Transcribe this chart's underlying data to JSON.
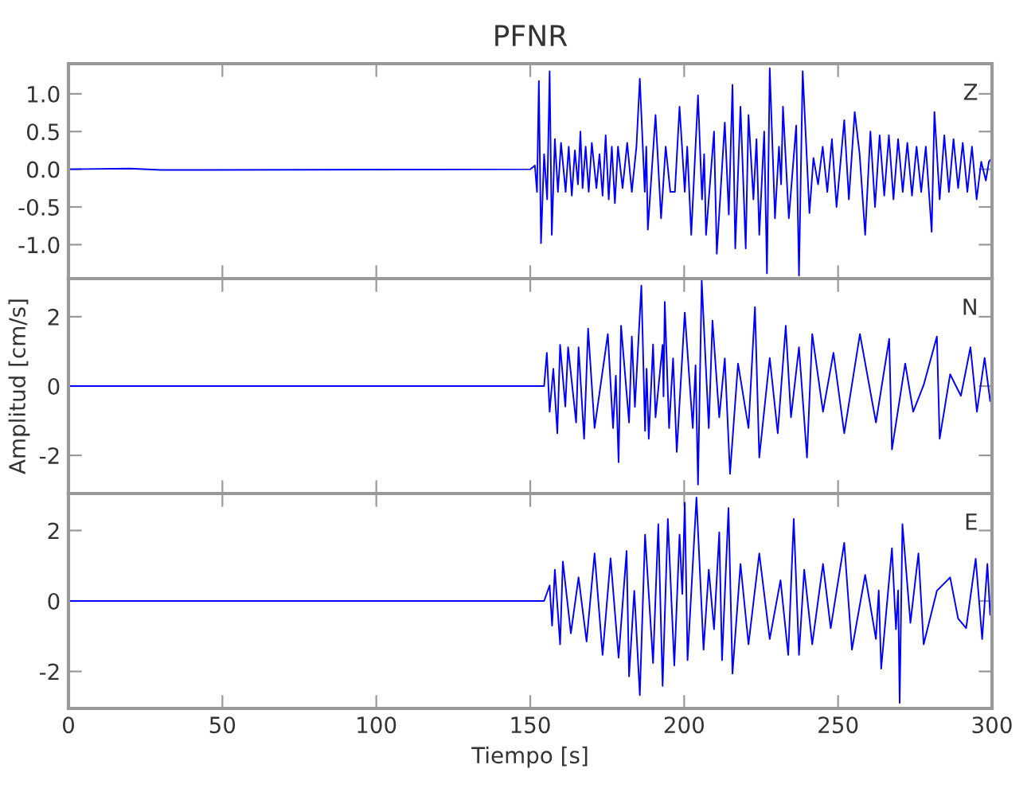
{
  "chart_data": [
    {
      "type": "line",
      "title": "PFNR",
      "annotations": [
        "Z"
      ],
      "xlim": [
        0,
        300
      ],
      "xticks": [
        0,
        50,
        100,
        150,
        200,
        250,
        300
      ],
      "ylim": [
        -1.45,
        1.4
      ],
      "yticks": [
        {
          "value": -1.0,
          "label": "-1.0"
        },
        {
          "value": -0.5,
          "label": "-0.5"
        },
        {
          "value": 0,
          "label": "0.0"
        },
        {
          "value": 0.5,
          "label": "0.5"
        },
        {
          "value": 1.0,
          "label": "1.0"
        }
      ],
      "tick_labels": "y",
      "grid": false,
      "legend": false,
      "series": [
        {
          "color": "#0000ff",
          "x": [
            0,
            20,
            30,
            150,
            151.5,
            152.2,
            152.8,
            153.5,
            154.5,
            155.5,
            156.3,
            157,
            158,
            159,
            160,
            161.5,
            162.5,
            163.5,
            164.5,
            165.5,
            166.3,
            167,
            168,
            169,
            170,
            171.5,
            172.5,
            173.5,
            174.5,
            175.5,
            176.5,
            177.5,
            178.5,
            180,
            181.5,
            183,
            184.5,
            185.6,
            187.2,
            187.7,
            188.2,
            190.7,
            192.5,
            194,
            195.5,
            197,
            198.5,
            200.2,
            201,
            202.3,
            204.5,
            205.8,
            206.5,
            207.1,
            209.7,
            210.6,
            213.2,
            214.5,
            215.7,
            216.6,
            218.3,
            220,
            220.9,
            222.5,
            223.5,
            224.4,
            226,
            226.9,
            227.8,
            229.5,
            230.8,
            231.5,
            232.1,
            234,
            236.4,
            237.3,
            238.5,
            240.7,
            242,
            243.5,
            245,
            246.5,
            248,
            249.5,
            252,
            253.5,
            255.4,
            257,
            258.8,
            260.5,
            262,
            263.5,
            265,
            266.5,
            268,
            269.5,
            271,
            272.5,
            274,
            275.5,
            277,
            278.5,
            280.4,
            281.3,
            283,
            284.5,
            286,
            287.5,
            289,
            290.5,
            292,
            293.5,
            295,
            296.5,
            298,
            299,
            300
          ],
          "values": [
            0,
            0.01,
            -0.01,
            0,
            0.05,
            -0.3,
            1.17,
            -0.98,
            0.2,
            -0.4,
            1.3,
            -0.87,
            0.4,
            -0.3,
            0.35,
            -0.3,
            0.3,
            -0.35,
            0.25,
            -0.2,
            0.5,
            -0.25,
            0.3,
            -0.3,
            0.35,
            -0.25,
            0.2,
            -0.35,
            0.45,
            -0.4,
            0.3,
            -0.45,
            0.3,
            -0.25,
            0.35,
            -0.3,
            0.3,
            1.2,
            -0.3,
            0.3,
            -0.8,
            0.72,
            -0.65,
            0.3,
            -0.3,
            -0.3,
            0.83,
            -0.3,
            0.3,
            -0.87,
            0.98,
            -0.4,
            0.2,
            -0.87,
            0.5,
            -1.12,
            0.62,
            -0.6,
            1.12,
            -1.05,
            0.83,
            -1.05,
            0.72,
            -0.4,
            0.4,
            -0.87,
            0.5,
            -1.38,
            1.34,
            -0.65,
            0.3,
            -0.2,
            0.83,
            -0.65,
            0.58,
            -1.41,
            1.3,
            -0.58,
            0.15,
            -0.2,
            0.3,
            -0.3,
            0.4,
            -0.5,
            0.65,
            -0.4,
            0.76,
            0.2,
            -0.87,
            0.5,
            -0.5,
            0.45,
            -0.35,
            0.45,
            -0.4,
            0.4,
            -0.3,
            0.35,
            -0.35,
            0.3,
            -0.3,
            0.3,
            -0.83,
            0.76,
            -0.4,
            0.45,
            -0.3,
            0.4,
            -0.25,
            0.35,
            -0.3,
            0.3,
            -0.4,
            0.1,
            -0.15,
            0.1,
            0.15
          ]
        }
      ]
    },
    {
      "type": "line",
      "ylabel": "Amplitud [cm/s]",
      "annotations": [
        "N"
      ],
      "xlim": [
        0,
        300
      ],
      "xticks": [
        0,
        50,
        100,
        150,
        200,
        250,
        300
      ],
      "ylim": [
        -3.1,
        3.1
      ],
      "yticks": [
        -2,
        0,
        2
      ],
      "tick_labels": "y",
      "grid": false,
      "legend": false,
      "series": [
        {
          "color": "#0000ff",
          "x": [
            0,
            150,
            154.5,
            155.4,
            156.3,
            157.5,
            158.8,
            159.7,
            161.4,
            162.3,
            164.9,
            165.7,
            167.5,
            168.8,
            170.9,
            175.2,
            176.9,
            177.8,
            178.7,
            179.5,
            182.1,
            183,
            184,
            186.1,
            187.3,
            187.8,
            188.5,
            189.9,
            190.7,
            193,
            193.3,
            193.7,
            195.1,
            196.4,
            197.6,
            200.2,
            202.8,
            203.7,
            204.5,
            205.7,
            208,
            209.2,
            211.4,
            213.2,
            214.9,
            217.5,
            220.9,
            223,
            224.4,
            227.8,
            230.4,
            233,
            234.7,
            237.3,
            239.9,
            241.6,
            245.1,
            248.5,
            252,
            257.1,
            262.3,
            266.6,
            267.5,
            271.8,
            274.4,
            277.8,
            282.1,
            283,
            286.4,
            289.9,
            293,
            295.1,
            297.6,
            299.4
          ],
          "values": [
            0,
            0,
            0,
            0.96,
            -0.74,
            0.5,
            -1.36,
            1.19,
            -0.59,
            1.12,
            -1.05,
            1.12,
            -1.52,
            1.66,
            -1.21,
            1.5,
            -1.21,
            0.3,
            -2.2,
            1.74,
            -1.05,
            1.43,
            -0.6,
            2.9,
            -1.29,
            0.5,
            -1.52,
            1.2,
            -0.9,
            1.19,
            -0.3,
            2.43,
            -1.21,
            0.8,
            -1.9,
            2.12,
            -1.21,
            0.6,
            -2.84,
            3.05,
            -1.21,
            1.89,
            -0.9,
            0.8,
            -2.53,
            0.65,
            -1.21,
            2.28,
            -2.06,
            0.81,
            -1.36,
            1.74,
            -0.9,
            1.12,
            -2.06,
            1.5,
            -0.74,
            0.96,
            -1.36,
            1.5,
            -1.05,
            1.36,
            -1.83,
            0.65,
            -0.74,
            0.03,
            1.43,
            -1.52,
            0.34,
            -0.28,
            1.12,
            -0.74,
            0.81,
            -0.43
          ]
        }
      ]
    },
    {
      "type": "line",
      "xlabel": "Tiempo [s]",
      "annotations": [
        "E"
      ],
      "xlim": [
        0,
        300
      ],
      "xticks": [
        0,
        50,
        100,
        150,
        200,
        250,
        300
      ],
      "ylim": [
        -3.05,
        3.05
      ],
      "yticks": [
        -2,
        0,
        2
      ],
      "grid": false,
      "legend": false,
      "series": [
        {
          "color": "#0000ff",
          "x": [
            0,
            150,
            154.5,
            156.3,
            157.1,
            158,
            159.7,
            160.6,
            163.2,
            165.7,
            168.3,
            170.9,
            173.5,
            176.1,
            178.7,
            181.3,
            182.1,
            183.8,
            185.6,
            187.3,
            189.9,
            191.6,
            193,
            194.7,
            196.8,
            198.5,
            199.4,
            200.2,
            201.1,
            204,
            206.3,
            208,
            209.7,
            211.4,
            212.3,
            214.4,
            215.7,
            218.3,
            220.9,
            224.4,
            227.8,
            231.3,
            233.8,
            235.6,
            237.3,
            239,
            241.6,
            245.1,
            247.6,
            252,
            254.5,
            258.8,
            262.3,
            263.2,
            264,
            267.5,
            268.8,
            269.5,
            270,
            270.9,
            273.5,
            276.1,
            277.8,
            282.1,
            286.4,
            289,
            291.6,
            294.7,
            296.8,
            298.5,
            299.4
          ],
          "values": [
            0,
            0,
            0,
            0.44,
            -0.7,
            0.89,
            -1.23,
            1.12,
            -0.92,
            0.67,
            -1.15,
            1.35,
            -1.53,
            1.21,
            -1.61,
            1.42,
            -2.14,
            0.29,
            -2.67,
            1.88,
            -1.76,
            2.18,
            -2.41,
            2.33,
            -1.83,
            1.88,
            0.2,
            2.79,
            -1.68,
            2.94,
            -1.38,
            0.89,
            -0.8,
            1.95,
            -1.68,
            2.64,
            -2.06,
            1.05,
            -1.23,
            1.35,
            -1.08,
            0.59,
            -1.53,
            2.33,
            -1.53,
            0.89,
            -1.23,
            1.05,
            -0.77,
            1.65,
            -1.38,
            0.74,
            -1.08,
            0.3,
            -1.92,
            1.5,
            -0.8,
            0.3,
            -2.89,
            2.18,
            -0.62,
            1.35,
            -1.23,
            0.29,
            0.67,
            -0.5,
            -0.77,
            1.2,
            -1.08,
            1.05,
            -0.39
          ]
        }
      ]
    }
  ]
}
